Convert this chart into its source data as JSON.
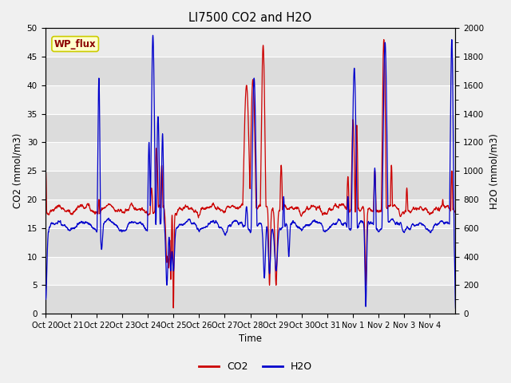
{
  "title": "LI7500 CO2 and H2O",
  "xlabel": "Time",
  "ylabel_left": "CO2 (mmol/m3)",
  "ylabel_right": "H2O (mmol/m3)",
  "co2_color": "#CC0000",
  "h2o_color": "#0000CC",
  "co2_label": "CO2",
  "h2o_label": "H2O",
  "ylim_left": [
    0,
    50
  ],
  "ylim_right": [
    0,
    2000
  ],
  "yticks_left": [
    0,
    5,
    10,
    15,
    20,
    25,
    30,
    35,
    40,
    45,
    50
  ],
  "yticks_right": [
    0,
    200,
    400,
    600,
    800,
    1000,
    1200,
    1400,
    1600,
    1800,
    2000
  ],
  "fig_bg_color": "#F0F0F0",
  "plot_bg_color": "#E8E8E8",
  "band_color_dark": "#DCDCDC",
  "band_color_light": "#EBEBEB",
  "annotation_text": "WP_flux",
  "annotation_color": "#8B0000",
  "annotation_bg": "#FFFFCC",
  "annotation_edge": "#CCCC00",
  "tick_labels": [
    "Oct 20",
    "Oct 21",
    "Oct 22",
    "Oct 23",
    "Oct 24",
    "Oct 25",
    "Oct 26",
    "Oct 27",
    "Oct 28",
    "Oct 29",
    "Oct 30",
    "Oct 31",
    "Nov 1",
    "Nov 2",
    "Nov 3",
    "Nov 4"
  ],
  "n_points": 2000,
  "random_seed": 42
}
